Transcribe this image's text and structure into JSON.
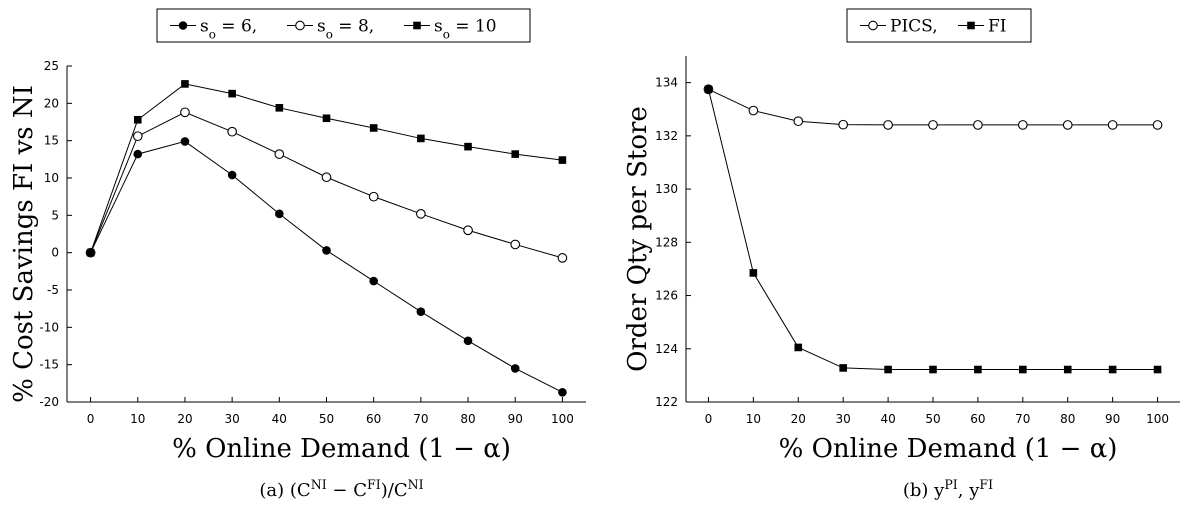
{
  "chart_data": [
    {
      "type": "line",
      "caption": "(a) (C^NI − C^FI)/C^NI",
      "xlabel": "% Online Demand (1 − α)",
      "ylabel": "% Cost Savings FI vs NI",
      "xlim": [
        -5,
        105
      ],
      "ylim": [
        -20,
        25
      ],
      "xticks": [
        0,
        10,
        20,
        30,
        40,
        50,
        60,
        70,
        80,
        90,
        100
      ],
      "yticks": [
        -20,
        -15,
        -10,
        -5,
        0,
        5,
        10,
        15,
        20,
        25
      ],
      "legend_position": "top",
      "x": [
        0,
        10,
        20,
        30,
        40,
        50,
        60,
        70,
        80,
        90,
        100
      ],
      "series": [
        {
          "name": "s_o = 6,",
          "marker": "filled-circle",
          "values": [
            0,
            13.2,
            14.9,
            10.4,
            5.2,
            0.3,
            -3.8,
            -7.9,
            -11.8,
            -15.5,
            -18.7
          ]
        },
        {
          "name": "s_o = 8,",
          "marker": "open-circle",
          "values": [
            0,
            15.6,
            18.8,
            16.2,
            13.2,
            10.1,
            7.5,
            5.2,
            3.0,
            1.1,
            -0.7
          ]
        },
        {
          "name": "s_o = 10",
          "marker": "filled-square",
          "values": [
            0,
            17.8,
            22.6,
            21.3,
            19.4,
            18.0,
            16.7,
            15.3,
            14.2,
            13.2,
            12.4
          ]
        }
      ]
    },
    {
      "type": "line",
      "caption": "(b) y^PI, y^FI",
      "xlabel": "% Online Demand (1 − α)",
      "ylabel": "Order Qty per Store",
      "xlim": [
        -5,
        105
      ],
      "ylim": [
        122,
        135
      ],
      "xticks": [
        0,
        10,
        20,
        30,
        40,
        50,
        60,
        70,
        80,
        90,
        100
      ],
      "yticks": [
        122,
        124,
        126,
        128,
        130,
        132,
        134
      ],
      "legend_position": "top",
      "x": [
        0,
        10,
        20,
        30,
        40,
        50,
        60,
        70,
        80,
        90,
        100
      ],
      "series": [
        {
          "name": "PICS,",
          "marker": "open-circle",
          "values": [
            133.75,
            132.95,
            132.55,
            132.42,
            132.41,
            132.41,
            132.41,
            132.41,
            132.41,
            132.41,
            132.41
          ]
        },
        {
          "name": "FI",
          "marker": "filled-square",
          "values": [
            133.75,
            126.85,
            124.05,
            123.28,
            123.22,
            123.22,
            123.22,
            123.22,
            123.22,
            123.22,
            123.22
          ]
        }
      ]
    }
  ]
}
